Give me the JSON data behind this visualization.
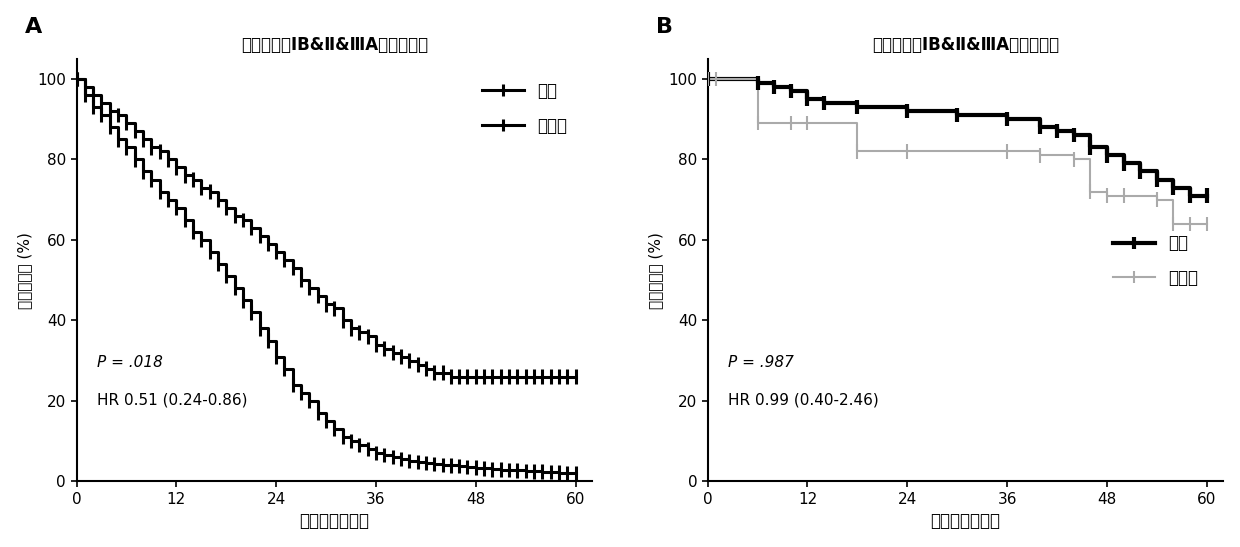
{
  "panel_A": {
    "title": "预后不良的ⅠB&Ⅱ&ⅢA期腔癌患者",
    "p_text": "P = .018",
    "hr_text": "HR 0.51 (0.24-0.86)",
    "chemo": {
      "label": "化疗",
      "color": "#000000",
      "lw": 2.2,
      "x": [
        0,
        1,
        2,
        3,
        4,
        5,
        6,
        7,
        8,
        9,
        10,
        11,
        12,
        13,
        14,
        15,
        16,
        17,
        18,
        19,
        20,
        21,
        22,
        23,
        24,
        25,
        26,
        27,
        28,
        29,
        30,
        31,
        32,
        33,
        34,
        35,
        36,
        37,
        38,
        39,
        40,
        41,
        42,
        43,
        44,
        45,
        46,
        47,
        48,
        49,
        50,
        51,
        52,
        53,
        54,
        55,
        56,
        57,
        58,
        59,
        60
      ],
      "y": [
        100,
        98,
        96,
        94,
        92,
        91,
        89,
        87,
        85,
        83,
        82,
        80,
        78,
        76,
        75,
        73,
        72,
        70,
        68,
        66,
        65,
        63,
        61,
        59,
        57,
        55,
        53,
        50,
        48,
        46,
        44,
        43,
        40,
        38,
        37,
        36,
        34,
        33,
        32,
        31,
        30,
        29,
        28,
        27,
        27,
        26,
        26,
        26,
        26,
        26,
        26,
        26,
        26,
        26,
        26,
        26,
        26,
        26,
        26,
        26,
        26
      ]
    },
    "no_chemo": {
      "label": "无化疗",
      "color": "#000000",
      "lw": 2.2,
      "x": [
        0,
        1,
        2,
        3,
        4,
        5,
        6,
        7,
        8,
        9,
        10,
        11,
        12,
        13,
        14,
        15,
        16,
        17,
        18,
        19,
        20,
        21,
        22,
        23,
        24,
        25,
        26,
        27,
        28,
        29,
        30,
        31,
        32,
        33,
        34,
        35,
        36,
        37,
        38,
        39,
        40,
        41,
        42,
        43,
        44,
        45,
        46,
        47,
        48,
        49,
        50,
        51,
        52,
        53,
        54,
        55,
        56,
        57,
        58,
        59,
        60
      ],
      "y": [
        100,
        96,
        93,
        91,
        88,
        85,
        83,
        80,
        77,
        75,
        72,
        70,
        68,
        65,
        62,
        60,
        57,
        54,
        51,
        48,
        45,
        42,
        38,
        35,
        31,
        28,
        24,
        22,
        20,
        17,
        15,
        13,
        11,
        10,
        9,
        8,
        7,
        6.5,
        6,
        5.5,
        5,
        4.8,
        4.5,
        4.3,
        4.1,
        4.0,
        3.8,
        3.6,
        3.4,
        3.2,
        3.0,
        2.9,
        2.8,
        2.7,
        2.6,
        2.5,
        2.4,
        2.3,
        2.2,
        2.1,
        2.0
      ]
    }
  },
  "panel_B": {
    "title": "预后良好的ⅠB&Ⅱ&ⅢA期腔癌患者",
    "p_text": "P = .987",
    "hr_text": "HR 0.99 (0.40-2.46)",
    "chemo": {
      "label": "化疗",
      "color": "#000000",
      "lw": 3.0,
      "x": [
        0,
        6,
        8,
        10,
        12,
        14,
        18,
        24,
        30,
        36,
        40,
        42,
        44,
        46,
        48,
        50,
        52,
        54,
        56,
        58,
        60
      ],
      "y": [
        100,
        99,
        98,
        97,
        95,
        94,
        93,
        92,
        91,
        90,
        88,
        87,
        86,
        83,
        81,
        79,
        77,
        75,
        73,
        71,
        71
      ]
    },
    "no_chemo": {
      "label": "无化疗",
      "color": "#aaaaaa",
      "lw": 1.5,
      "x": [
        0,
        1,
        6,
        10,
        12,
        18,
        24,
        36,
        40,
        44,
        46,
        48,
        50,
        54,
        56,
        58,
        60
      ],
      "y": [
        100,
        100,
        89,
        89,
        89,
        82,
        82,
        82,
        81,
        80,
        72,
        71,
        71,
        70,
        64,
        64,
        64
      ]
    }
  },
  "ylabel": "总体生存率 (%)",
  "xlabel": "生存时间（月）",
  "xlim": [
    0,
    62
  ],
  "ylim": [
    0,
    105
  ],
  "xticks": [
    0,
    12,
    24,
    36,
    48,
    60
  ],
  "yticks": [
    0,
    20,
    40,
    60,
    80,
    100
  ],
  "background_color": "#ffffff"
}
